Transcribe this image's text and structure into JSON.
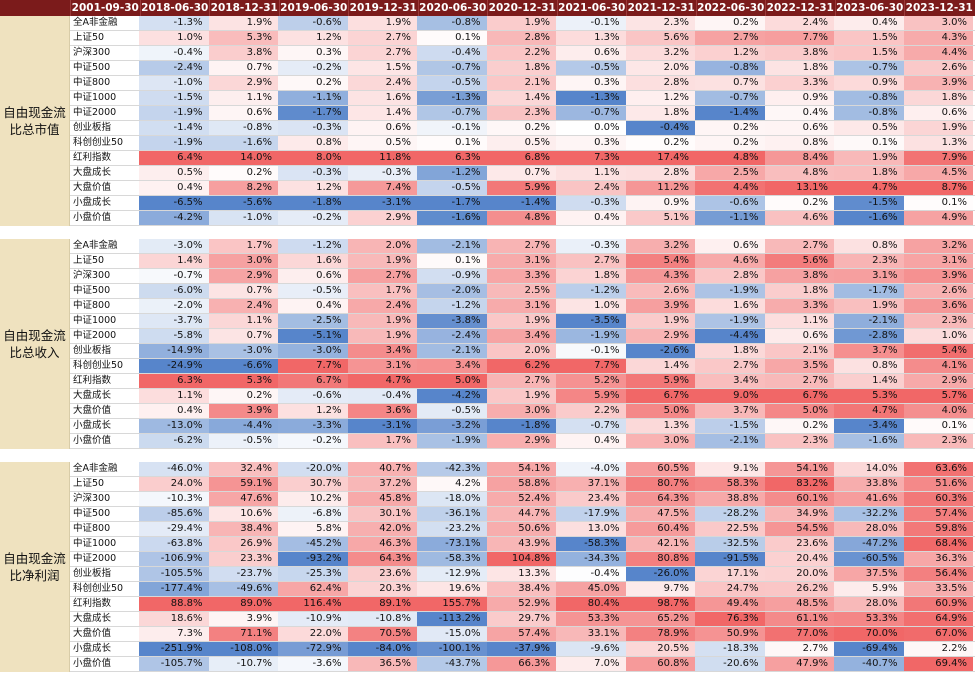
{
  "columns": [
    "2001-09-30",
    "2018-06-30",
    "2018-12-31",
    "2019-06-30",
    "2019-12-31",
    "2020-06-30",
    "2020-12-31",
    "2021-06-30",
    "2021-12-31",
    "2022-06-30",
    "2022-12-31",
    "2023-06-30",
    "2023-12-31"
  ],
  "sections": [
    {
      "label": "自由现金流比总市值",
      "rows": [
        {
          "name": "全A非金融",
          "values": [
            "-1.3%",
            "1.9%",
            "-0.6%",
            "1.9%",
            "-0.8%",
            "1.9%",
            "-0.1%",
            "2.3%",
            "0.2%",
            "2.4%",
            "0.4%",
            "3.0%"
          ]
        },
        {
          "name": "上证50",
          "values": [
            "1.0%",
            "5.3%",
            "1.2%",
            "2.7%",
            "0.1%",
            "2.8%",
            "1.3%",
            "5.6%",
            "2.7%",
            "7.7%",
            "1.5%",
            "4.3%"
          ]
        },
        {
          "name": "沪深300",
          "values": [
            "-0.4%",
            "3.8%",
            "0.3%",
            "2.7%",
            "-0.4%",
            "2.2%",
            "0.6%",
            "3.2%",
            "1.2%",
            "3.8%",
            "1.5%",
            "4.4%"
          ]
        },
        {
          "name": "中证500",
          "values": [
            "-2.4%",
            "0.7%",
            "-0.2%",
            "1.5%",
            "-0.7%",
            "1.8%",
            "-0.5%",
            "2.0%",
            "-0.8%",
            "1.8%",
            "-0.7%",
            "2.6%"
          ]
        },
        {
          "name": "中证800",
          "values": [
            "-1.0%",
            "2.9%",
            "0.2%",
            "2.4%",
            "-0.5%",
            "2.1%",
            "0.3%",
            "2.8%",
            "0.7%",
            "3.3%",
            "0.9%",
            "3.9%"
          ]
        },
        {
          "name": "中证1000",
          "values": [
            "-1.5%",
            "1.1%",
            "-1.1%",
            "1.6%",
            "-1.3%",
            "1.4%",
            "-1.3%",
            "1.2%",
            "-0.7%",
            "0.9%",
            "-0.8%",
            "1.8%"
          ]
        },
        {
          "name": "中证2000",
          "values": [
            "-1.9%",
            "0.6%",
            "-1.7%",
            "1.4%",
            "-0.7%",
            "2.3%",
            "-0.7%",
            "1.8%",
            "-1.4%",
            "0.4%",
            "-0.8%",
            "0.6%"
          ]
        },
        {
          "name": "创业板指",
          "values": [
            "-1.4%",
            "-0.8%",
            "-0.3%",
            "0.6%",
            "-0.1%",
            "0.2%",
            "0.0%",
            "-0.4%",
            "0.2%",
            "0.6%",
            "0.5%",
            "1.9%"
          ]
        },
        {
          "name": "科创创业50",
          "values": [
            "-1.9%",
            "-1.6%",
            "0.8%",
            "0.5%",
            "0.1%",
            "0.5%",
            "0.3%",
            "0.2%",
            "0.2%",
            "0.8%",
            "0.1%",
            "1.3%"
          ]
        },
        {
          "name": "红利指数",
          "values": [
            "6.4%",
            "14.0%",
            "8.0%",
            "11.8%",
            "6.3%",
            "6.8%",
            "7.3%",
            "17.4%",
            "4.8%",
            "8.4%",
            "1.9%",
            "7.9%"
          ]
        },
        {
          "name": "大盘成长",
          "values": [
            "0.5%",
            "0.2%",
            "-0.3%",
            "-0.3%",
            "-1.2%",
            "0.7%",
            "1.1%",
            "2.8%",
            "2.5%",
            "4.8%",
            "1.8%",
            "4.5%"
          ]
        },
        {
          "name": "大盘价值",
          "values": [
            "0.4%",
            "8.2%",
            "1.2%",
            "7.4%",
            "-0.5%",
            "5.9%",
            "2.4%",
            "11.2%",
            "4.4%",
            "13.1%",
            "4.7%",
            "8.7%"
          ]
        },
        {
          "name": "小盘成长",
          "values": [
            "-6.5%",
            "-5.6%",
            "-1.8%",
            "-3.1%",
            "-1.7%",
            "-1.4%",
            "-0.3%",
            "0.9%",
            "-0.6%",
            "0.2%",
            "-1.5%",
            "0.1%"
          ]
        },
        {
          "name": "小盘价值",
          "values": [
            "-4.2%",
            "-1.0%",
            "-0.2%",
            "2.9%",
            "-1.6%",
            "4.8%",
            "0.4%",
            "5.1%",
            "-1.1%",
            "4.6%",
            "-1.6%",
            "4.9%"
          ]
        }
      ]
    },
    {
      "label": "自由现金流比总收入",
      "rows": [
        {
          "name": "全A非金融",
          "values": [
            "-3.0%",
            "1.7%",
            "-1.2%",
            "2.0%",
            "-2.1%",
            "2.7%",
            "-0.3%",
            "3.2%",
            "0.6%",
            "2.7%",
            "0.8%",
            "3.2%"
          ]
        },
        {
          "name": "上证50",
          "values": [
            "1.4%",
            "3.0%",
            "1.6%",
            "1.9%",
            "0.1%",
            "3.1%",
            "2.7%",
            "5.4%",
            "4.6%",
            "5.6%",
            "2.3%",
            "3.1%"
          ]
        },
        {
          "name": "沪深300",
          "values": [
            "-0.7%",
            "2.9%",
            "0.6%",
            "2.7%",
            "-0.9%",
            "3.3%",
            "1.8%",
            "4.3%",
            "2.8%",
            "3.8%",
            "3.1%",
            "3.9%"
          ]
        },
        {
          "name": "中证500",
          "values": [
            "-6.0%",
            "0.7%",
            "-0.5%",
            "1.7%",
            "-2.0%",
            "2.5%",
            "-1.2%",
            "2.6%",
            "-1.9%",
            "1.8%",
            "-1.7%",
            "2.6%"
          ]
        },
        {
          "name": "中证800",
          "values": [
            "-2.0%",
            "2.4%",
            "0.4%",
            "2.4%",
            "-1.2%",
            "3.1%",
            "1.0%",
            "3.9%",
            "1.6%",
            "3.3%",
            "1.9%",
            "3.6%"
          ]
        },
        {
          "name": "中证1000",
          "values": [
            "-3.7%",
            "1.1%",
            "-2.5%",
            "1.9%",
            "-3.8%",
            "1.9%",
            "-3.5%",
            "1.9%",
            "-1.9%",
            "1.1%",
            "-2.1%",
            "2.3%"
          ]
        },
        {
          "name": "中证2000",
          "values": [
            "-5.8%",
            "0.7%",
            "-5.1%",
            "1.9%",
            "-2.4%",
            "3.4%",
            "-1.9%",
            "2.9%",
            "-4.4%",
            "0.6%",
            "-2.8%",
            "1.0%"
          ]
        },
        {
          "name": "创业板指",
          "values": [
            "-14.9%",
            "-3.0%",
            "-3.0%",
            "3.4%",
            "-2.1%",
            "2.0%",
            "-0.1%",
            "-2.6%",
            "1.8%",
            "2.1%",
            "3.7%",
            "5.4%"
          ]
        },
        {
          "name": "科创创业50",
          "values": [
            "-24.9%",
            "-6.6%",
            "7.7%",
            "3.1%",
            "3.4%",
            "6.2%",
            "7.7%",
            "1.4%",
            "2.7%",
            "3.5%",
            "0.8%",
            "4.1%"
          ]
        },
        {
          "name": "红利指数",
          "values": [
            "6.3%",
            "5.3%",
            "6.7%",
            "4.7%",
            "5.0%",
            "2.7%",
            "5.2%",
            "5.9%",
            "3.4%",
            "2.7%",
            "1.4%",
            "2.9%"
          ]
        },
        {
          "name": "大盘成长",
          "values": [
            "1.1%",
            "0.2%",
            "-0.6%",
            "-0.4%",
            "-4.2%",
            "1.9%",
            "5.9%",
            "6.7%",
            "9.0%",
            "6.7%",
            "5.3%",
            "5.7%"
          ]
        },
        {
          "name": "大盘价值",
          "values": [
            "0.4%",
            "3.9%",
            "1.2%",
            "3.6%",
            "-0.5%",
            "3.0%",
            "2.2%",
            "5.0%",
            "3.7%",
            "5.0%",
            "4.7%",
            "4.0%"
          ]
        },
        {
          "name": "小盘成长",
          "values": [
            "-13.0%",
            "-4.4%",
            "-3.3%",
            "-3.1%",
            "-3.2%",
            "-1.8%",
            "-0.7%",
            "1.3%",
            "-1.5%",
            "0.2%",
            "-3.4%",
            "0.1%"
          ]
        },
        {
          "name": "小盘价值",
          "values": [
            "-6.2%",
            "-0.5%",
            "-0.2%",
            "1.7%",
            "-1.9%",
            "2.9%",
            "0.4%",
            "3.0%",
            "-2.1%",
            "2.3%",
            "-1.6%",
            "2.3%"
          ]
        }
      ]
    },
    {
      "label": "自由现金流比净利润",
      "rows": [
        {
          "name": "全A非金融",
          "values": [
            "-46.0%",
            "32.4%",
            "-20.0%",
            "40.7%",
            "-42.3%",
            "54.1%",
            "-4.0%",
            "60.5%",
            "9.1%",
            "54.1%",
            "14.0%",
            "63.6%"
          ]
        },
        {
          "name": "上证50",
          "values": [
            "24.0%",
            "59.1%",
            "30.7%",
            "37.2%",
            "4.2%",
            "58.8%",
            "37.1%",
            "80.7%",
            "58.3%",
            "83.2%",
            "33.8%",
            "51.6%"
          ]
        },
        {
          "name": "沪深300",
          "values": [
            "-10.3%",
            "47.6%",
            "10.2%",
            "45.8%",
            "-18.0%",
            "52.4%",
            "23.4%",
            "64.3%",
            "38.8%",
            "60.1%",
            "41.6%",
            "60.3%"
          ]
        },
        {
          "name": "中证500",
          "values": [
            "-85.6%",
            "10.6%",
            "-6.8%",
            "30.1%",
            "-36.1%",
            "44.7%",
            "-17.9%",
            "47.5%",
            "-28.2%",
            "34.9%",
            "-32.2%",
            "57.4%"
          ]
        },
        {
          "name": "中证800",
          "values": [
            "-29.4%",
            "38.4%",
            "5.8%",
            "42.0%",
            "-23.2%",
            "50.6%",
            "13.0%",
            "60.4%",
            "22.5%",
            "54.5%",
            "28.0%",
            "59.8%"
          ]
        },
        {
          "name": "中证1000",
          "values": [
            "-63.8%",
            "26.9%",
            "-45.2%",
            "46.3%",
            "-73.1%",
            "43.9%",
            "-58.3%",
            "42.1%",
            "-32.5%",
            "23.6%",
            "-47.2%",
            "68.4%"
          ]
        },
        {
          "name": "中证2000",
          "values": [
            "-106.9%",
            "23.3%",
            "-93.2%",
            "64.3%",
            "-58.3%",
            "104.8%",
            "-34.3%",
            "80.8%",
            "-91.5%",
            "20.4%",
            "-60.5%",
            "36.3%"
          ]
        },
        {
          "name": "创业板指",
          "values": [
            "-105.5%",
            "-23.7%",
            "-25.3%",
            "23.6%",
            "-12.9%",
            "13.3%",
            "-0.4%",
            "-26.0%",
            "17.1%",
            "20.0%",
            "37.5%",
            "56.4%"
          ]
        },
        {
          "name": "科创创业50",
          "values": [
            "-177.4%",
            "-49.6%",
            "62.4%",
            "20.3%",
            "19.6%",
            "38.4%",
            "45.0%",
            "9.7%",
            "24.7%",
            "26.2%",
            "5.9%",
            "33.5%"
          ]
        },
        {
          "name": "红利指数",
          "values": [
            "88.8%",
            "89.0%",
            "116.4%",
            "89.1%",
            "155.7%",
            "52.9%",
            "80.4%",
            "98.7%",
            "49.4%",
            "48.5%",
            "28.0%",
            "60.9%"
          ]
        },
        {
          "name": "大盘成长",
          "values": [
            "18.6%",
            "3.9%",
            "-10.9%",
            "-10.8%",
            "-113.2%",
            "29.7%",
            "53.3%",
            "65.2%",
            "76.3%",
            "61.1%",
            "53.3%",
            "64.9%"
          ]
        },
        {
          "name": "大盘价值",
          "values": [
            "7.3%",
            "71.1%",
            "22.0%",
            "70.5%",
            "-15.0%",
            "57.4%",
            "33.1%",
            "78.9%",
            "50.9%",
            "77.0%",
            "70.0%",
            "67.0%"
          ]
        },
        {
          "name": "小盘成长",
          "values": [
            "-251.9%",
            "-108.0%",
            "-72.9%",
            "-84.0%",
            "-100.1%",
            "-37.9%",
            "-9.6%",
            "20.5%",
            "-18.3%",
            "2.7%",
            "-69.4%",
            "2.2%"
          ]
        },
        {
          "name": "小盘价值",
          "values": [
            "-105.7%",
            "-10.7%",
            "-3.6%",
            "36.5%",
            "-43.7%",
            "66.3%",
            "7.0%",
            "60.8%",
            "-20.6%",
            "47.9%",
            "-40.7%",
            "69.4%"
          ]
        }
      ]
    }
  ],
  "colors": {
    "header_bg": "#7b1b1b",
    "label_bg": "#efe2bf",
    "positive": "#f05f5f",
    "negative": "#4e7fc8"
  }
}
